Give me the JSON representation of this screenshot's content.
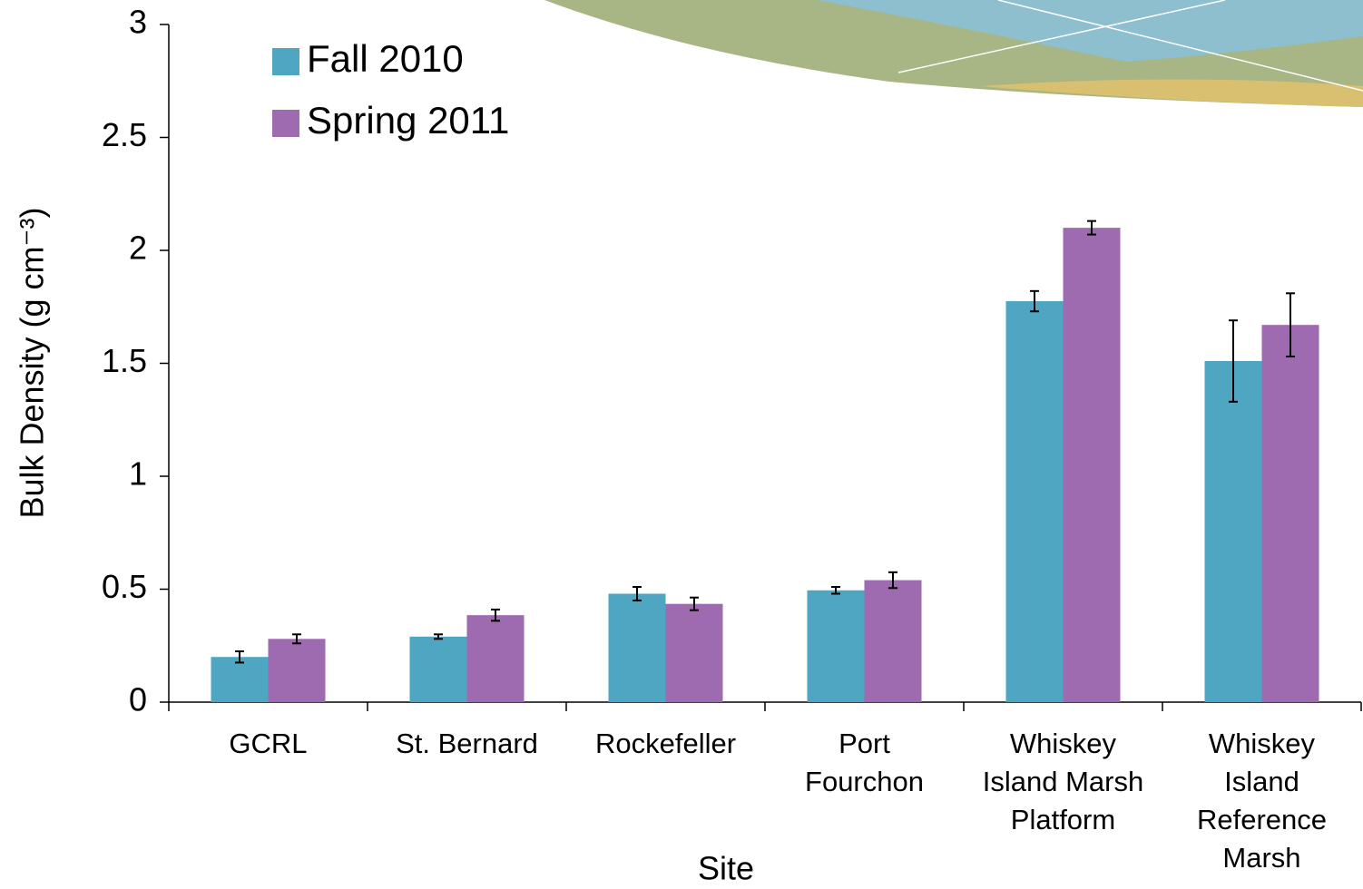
{
  "chart_data": {
    "type": "bar",
    "x_label": "Site",
    "y_label": "Bulk Density (g cm⁻³)",
    "categories": [
      "GCRL",
      "St. Bernard",
      "Rockefeller",
      "Port\nFourchon",
      "Whiskey\nIsland Marsh\nPlatform",
      "Whiskey\nIsland\nReference\nMarsh"
    ],
    "series": [
      {
        "name": "Fall 2010",
        "color": "#4fa6c2",
        "values": [
          0.2,
          0.29,
          0.48,
          0.495,
          1.775,
          1.51
        ],
        "errors": [
          0.025,
          0.01,
          0.03,
          0.015,
          0.045,
          0.18
        ]
      },
      {
        "name": "Spring 2011",
        "color": "#9e6bb0",
        "values": [
          0.28,
          0.385,
          0.435,
          0.54,
          2.1,
          1.67
        ],
        "errors": [
          0.02,
          0.025,
          0.028,
          0.035,
          0.03,
          0.14
        ]
      }
    ],
    "ylim": [
      0,
      3
    ],
    "yticks": [
      0,
      0.5,
      1,
      1.5,
      2,
      2.5,
      3
    ],
    "grid": false,
    "legend": "upper-left"
  }
}
